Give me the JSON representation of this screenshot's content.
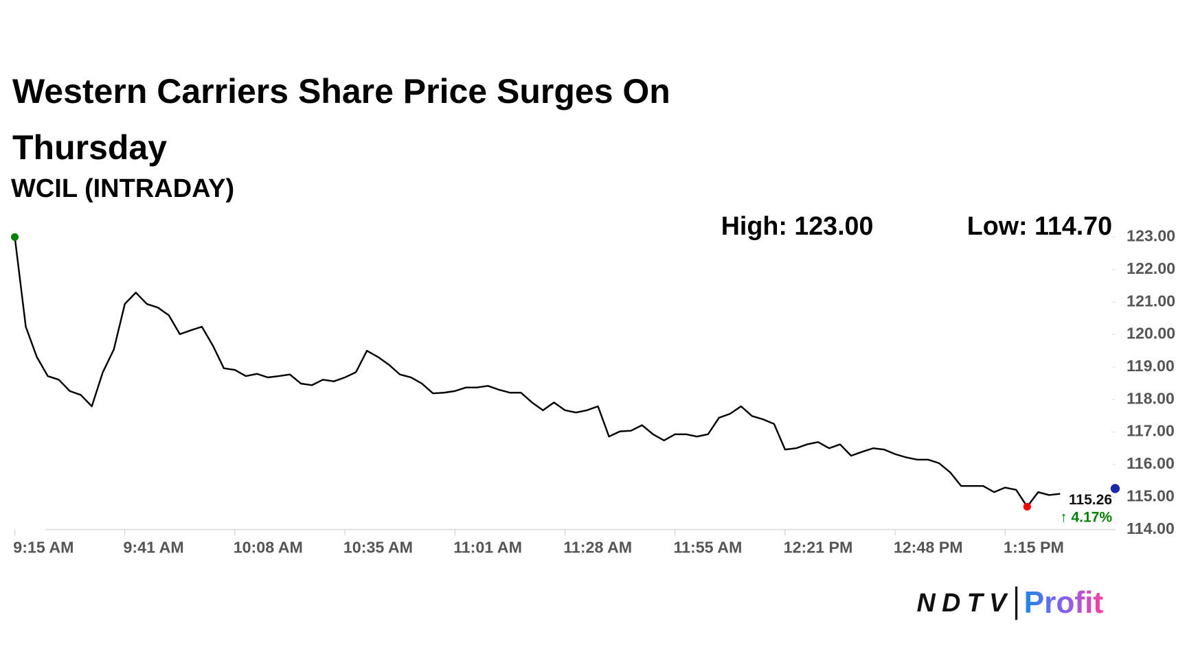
{
  "chart_data": {
    "type": "line",
    "title": "Western Carriers Share Price Surges On Thursday",
    "subtitle": "WCIL (INTRADAY)",
    "high_label": "High: 123.00",
    "low_label": "Low: 114.70",
    "last_value": 115.26,
    "change_label": "↑ 4.17%",
    "high_index": 0,
    "low_index": 92,
    "brand": [
      "NDTV",
      "Profit"
    ],
    "categories": [
      "9:15 AM",
      null,
      null,
      null,
      null,
      null,
      null,
      null,
      null,
      null,
      "9:41 AM",
      null,
      null,
      null,
      null,
      null,
      null,
      null,
      null,
      null,
      "10:08 AM",
      null,
      null,
      null,
      null,
      null,
      null,
      null,
      null,
      null,
      "10:35 AM",
      null,
      null,
      null,
      null,
      null,
      null,
      null,
      null,
      null,
      "11:01 AM",
      null,
      null,
      null,
      null,
      null,
      null,
      null,
      null,
      null,
      "11:28 AM",
      null,
      null,
      null,
      null,
      null,
      null,
      null,
      null,
      null,
      "11:55 AM",
      null,
      null,
      null,
      null,
      null,
      null,
      null,
      null,
      null,
      "12:21 PM",
      null,
      null,
      null,
      null,
      null,
      null,
      null,
      null,
      null,
      "12:48 PM",
      null,
      null,
      null,
      null,
      null,
      null,
      null,
      null,
      null,
      "1:15 PM",
      null,
      null,
      null,
      null,
      null,
      null,
      null,
      null,
      null,
      null
    ],
    "series": [
      {
        "name": "WCIL",
        "color": "#000000",
        "values": [
          123.0,
          120.24,
          119.31,
          118.72,
          118.61,
          118.26,
          118.14,
          117.79,
          118.84,
          119.54,
          120.94,
          121.29,
          120.94,
          120.83,
          120.59,
          120.01,
          120.13,
          120.24,
          119.66,
          118.96,
          118.91,
          118.72,
          118.79,
          118.68,
          118.72,
          118.77,
          118.49,
          118.44,
          118.61,
          118.56,
          118.68,
          118.84,
          119.5,
          119.31,
          119.07,
          118.77,
          118.68,
          118.49,
          118.19,
          118.21,
          118.26,
          118.37,
          118.37,
          118.42,
          118.3,
          118.21,
          118.21,
          117.91,
          117.67,
          117.91,
          117.67,
          117.6,
          117.67,
          117.79,
          116.86,
          117.02,
          117.04,
          117.21,
          116.93,
          116.74,
          116.93,
          116.93,
          116.86,
          116.93,
          117.44,
          117.56,
          117.79,
          117.49,
          117.39,
          117.25,
          116.46,
          116.5,
          116.62,
          116.69,
          116.5,
          116.62,
          116.27,
          116.39,
          116.5,
          116.46,
          116.32,
          116.22,
          116.15,
          116.15,
          116.04,
          115.76,
          115.34,
          115.34,
          115.34,
          115.15,
          115.29,
          115.22,
          114.7,
          115.15,
          115.06,
          115.1,
          null,
          null,
          null,
          null,
          null
        ]
      }
    ],
    "ylim": [
      114,
      123
    ],
    "yticks": [
      {
        "value": 114,
        "label": "114.00"
      },
      {
        "value": 115,
        "label": "115.00"
      },
      {
        "value": 116,
        "label": "116.00"
      },
      {
        "value": 117,
        "label": "117.00"
      },
      {
        "value": 118,
        "label": "118.00"
      },
      {
        "value": 119,
        "label": "119.00"
      },
      {
        "value": 120,
        "label": "120.00"
      },
      {
        "value": 121,
        "label": "121.00"
      },
      {
        "value": 122,
        "label": "122.00"
      },
      {
        "value": 123,
        "label": "123.00"
      }
    ],
    "grid": false
  }
}
